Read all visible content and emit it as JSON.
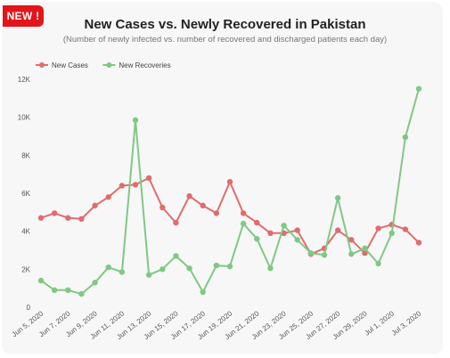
{
  "badge": {
    "label": "NEW !"
  },
  "chart_data": {
    "type": "line",
    "title": "New Cases vs. Newly Recovered in Pakistan",
    "subtitle": "(Number of newly infected vs. number of recovered and discharged patients each day)",
    "x": [
      "Jun 5, 2020",
      "Jun 6, 2020",
      "Jun 7, 2020",
      "Jun 8, 2020",
      "Jun 9, 2020",
      "Jun 10, 2020",
      "Jun 11, 2020",
      "Jun 12, 2020",
      "Jun 13, 2020",
      "Jun 14, 2020",
      "Jun 15, 2020",
      "Jun 16, 2020",
      "Jun 17, 2020",
      "Jun 18, 2020",
      "Jun 19, 2020",
      "Jun 20, 2020",
      "Jun 21, 2020",
      "Jun 22, 2020",
      "Jun 23, 2020",
      "Jun 24, 2020",
      "Jun 25, 2020",
      "Jun 26, 2020",
      "Jun 27, 2020",
      "Jun 28, 2020",
      "Jun 29, 2020",
      "Jun 30, 2020",
      "Jul 1, 2020",
      "Jul 2, 2020",
      "Jul 3, 2020"
    ],
    "xtick_labels": [
      "Jun 5, 2020",
      "Jun 7, 2020",
      "Jun 9, 2020",
      "Jun 11, 2020",
      "Jun 13, 2020",
      "Jun 15, 2020",
      "Jun 17, 2020",
      "Jun 19, 2020",
      "Jun 21, 2020",
      "Jun 23, 2020",
      "Jun 25, 2020",
      "Jun 27, 2020",
      "Jun 29, 2020",
      "Jul 1, 2020",
      "Jul 3, 2020"
    ],
    "ylim": [
      0,
      12000
    ],
    "yticks": [
      0,
      2000,
      4000,
      6000,
      8000,
      10000,
      12000
    ],
    "ytick_labels": [
      "0",
      "2K",
      "4K",
      "6K",
      "8K",
      "10K",
      "12K"
    ],
    "grid": false,
    "legend_position": "top-left",
    "series": [
      {
        "name": "New Cases",
        "color": "#e06c6e",
        "values": [
          4700,
          4950,
          4700,
          4650,
          5350,
          5800,
          6400,
          6450,
          6800,
          5250,
          4450,
          5850,
          5350,
          4950,
          6600,
          4950,
          4450,
          3900,
          3900,
          4050,
          2800,
          3100,
          4050,
          3550,
          2850,
          4150,
          4350,
          4100,
          3400
        ]
      },
      {
        "name": "New Recoveries",
        "color": "#80c884",
        "values": [
          1400,
          900,
          900,
          700,
          1300,
          2100,
          1850,
          9850,
          1700,
          2000,
          2700,
          2050,
          800,
          2200,
          2150,
          4400,
          3600,
          2050,
          4300,
          3550,
          2850,
          2750,
          5750,
          2800,
          3100,
          2300,
          3900,
          8950,
          11500
        ]
      }
    ]
  }
}
